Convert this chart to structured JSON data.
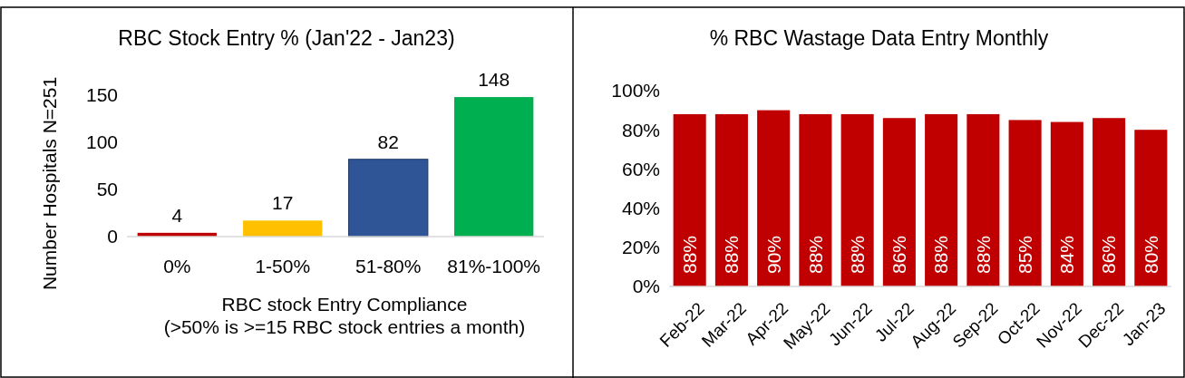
{
  "chart_data": [
    {
      "type": "bar",
      "title": "RBC Stock Entry % (Jan'22 - Jan23)",
      "xlabel": "RBC stock Entry Compliance\n(>50% is >=15 RBC stock entries a month)",
      "ylabel": "Number Hospitals N=251",
      "categories": [
        "0%",
        "1-50%",
        "51-80%",
        "81%-100%"
      ],
      "values": [
        4,
        17,
        82,
        148
      ],
      "colors": [
        "#c00000",
        "#ffc000",
        "#2f5597",
        "#00b050"
      ],
      "ylim": [
        0,
        150
      ],
      "yticks": [
        0,
        50,
        100,
        150
      ],
      "data_labels": true,
      "grid": false
    },
    {
      "type": "bar",
      "title": "% RBC Wastage Data Entry Monthly",
      "categories": [
        "Feb-22",
        "Mar-22",
        "Apr-22",
        "May-22",
        "Jun-22",
        "Jul-22",
        "Aug-22",
        "Sep-22",
        "Oct-22",
        "Nov-22",
        "Dec-22",
        "Jan-23"
      ],
      "values": [
        88,
        88,
        90,
        88,
        88,
        86,
        88,
        88,
        85,
        84,
        86,
        80
      ],
      "color": "#c00000",
      "value_labels": [
        "88%",
        "88%",
        "90%",
        "88%",
        "88%",
        "86%",
        "88%",
        "88%",
        "85%",
        "84%",
        "86%",
        "80%"
      ],
      "ylim": [
        0,
        100
      ],
      "yticks": [
        {
          "value": 0,
          "label": "0%"
        },
        {
          "value": 20,
          "label": "20%"
        },
        {
          "value": 40,
          "label": "40%"
        },
        {
          "value": 60,
          "label": "60%"
        },
        {
          "value": 80,
          "label": "80%"
        },
        {
          "value": 100,
          "label": "100%"
        }
      ],
      "grid": false
    }
  ]
}
